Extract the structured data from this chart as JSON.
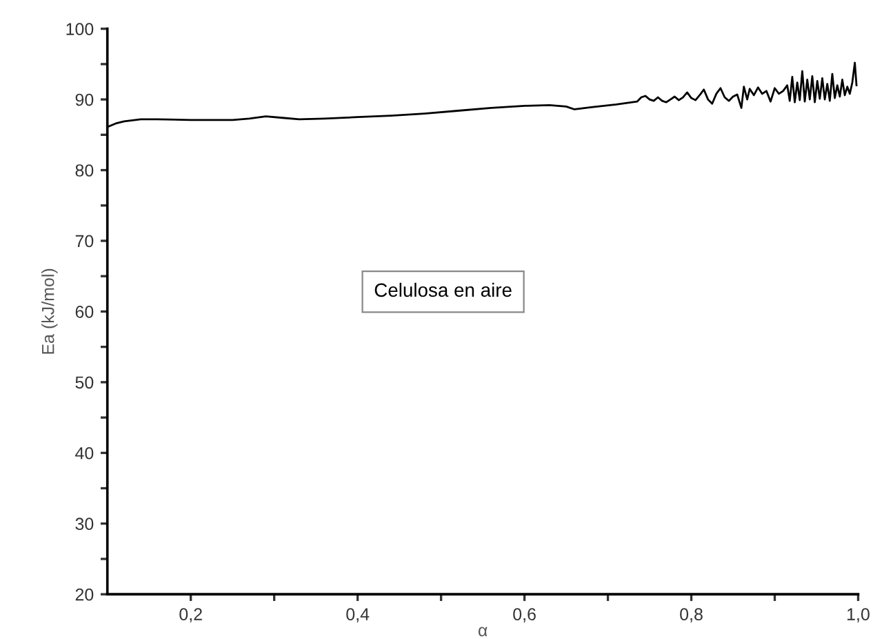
{
  "chart_data": {
    "type": "line",
    "xlabel": "α",
    "ylabel": "Ea (kJ/mol)",
    "annotations": [
      "Celulosa en aire"
    ],
    "xlim": [
      0.1,
      1.0
    ],
    "ylim": [
      20,
      100
    ],
    "xticks": [
      {
        "value": 0.2,
        "label": "0,2"
      },
      {
        "value": 0.3,
        "label": null
      },
      {
        "value": 0.4,
        "label": "0,4"
      },
      {
        "value": 0.5,
        "label": null
      },
      {
        "value": 0.6,
        "label": "0,6"
      },
      {
        "value": 0.7,
        "label": null
      },
      {
        "value": 0.8,
        "label": "0,8"
      },
      {
        "value": 0.9,
        "label": null
      },
      {
        "value": 1.0,
        "label": "1,0"
      }
    ],
    "yticks": [
      20,
      {
        "value": 25,
        "label": null
      },
      30,
      {
        "value": 35,
        "label": null
      },
      40,
      {
        "value": 45,
        "label": null
      },
      50,
      {
        "value": 55,
        "label": null
      },
      60,
      {
        "value": 65,
        "label": null
      },
      70,
      {
        "value": 75,
        "label": null
      },
      80,
      {
        "value": 85,
        "label": null
      },
      90,
      {
        "value": 95,
        "label": null
      },
      100
    ],
    "grid": false,
    "legend": false,
    "marker": "none",
    "line_style": "solid",
    "series": [
      {
        "color": "#000000",
        "x": [
          0.1,
          0.11,
          0.12,
          0.14,
          0.16,
          0.2,
          0.25,
          0.27,
          0.29,
          0.31,
          0.33,
          0.36,
          0.4,
          0.44,
          0.48,
          0.52,
          0.56,
          0.6,
          0.63,
          0.65,
          0.66,
          0.68,
          0.71,
          0.735,
          0.74,
          0.745,
          0.75,
          0.755,
          0.76,
          0.765,
          0.77,
          0.775,
          0.78,
          0.785,
          0.79,
          0.795,
          0.8,
          0.805,
          0.81,
          0.815,
          0.82,
          0.825,
          0.83,
          0.835,
          0.84,
          0.845,
          0.85,
          0.855,
          0.86,
          0.863,
          0.867,
          0.87,
          0.875,
          0.88,
          0.885,
          0.89,
          0.895,
          0.9,
          0.905,
          0.91,
          0.915,
          0.918,
          0.921,
          0.924,
          0.927,
          0.93,
          0.933,
          0.936,
          0.939,
          0.942,
          0.945,
          0.948,
          0.951,
          0.954,
          0.957,
          0.96,
          0.963,
          0.966,
          0.969,
          0.972,
          0.975,
          0.978,
          0.981,
          0.984,
          0.987,
          0.99,
          0.993,
          0.996,
          0.998
        ],
        "values": [
          86.1,
          86.6,
          86.9,
          87.2,
          87.2,
          87.1,
          87.1,
          87.3,
          87.6,
          87.4,
          87.2,
          87.3,
          87.5,
          87.7,
          88.0,
          88.4,
          88.8,
          89.1,
          89.2,
          89.0,
          88.6,
          88.9,
          89.3,
          89.7,
          90.3,
          90.5,
          90.0,
          89.8,
          90.3,
          89.8,
          89.6,
          90.0,
          90.4,
          89.9,
          90.3,
          91.0,
          90.2,
          89.9,
          90.6,
          91.4,
          90.0,
          89.4,
          90.8,
          91.6,
          90.3,
          89.8,
          90.4,
          90.7,
          88.8,
          91.8,
          90.0,
          91.5,
          90.6,
          91.7,
          90.8,
          91.2,
          89.7,
          91.6,
          90.8,
          91.2,
          92.0,
          89.8,
          93.2,
          89.6,
          92.4,
          89.9,
          94.0,
          89.7,
          92.8,
          90.0,
          93.3,
          89.6,
          92.6,
          90.1,
          93.0,
          90.0,
          92.2,
          89.8,
          93.6,
          90.2,
          92.0,
          90.4,
          92.8,
          90.6,
          91.8,
          90.8,
          92.4,
          95.2,
          92.0
        ]
      }
    ]
  }
}
